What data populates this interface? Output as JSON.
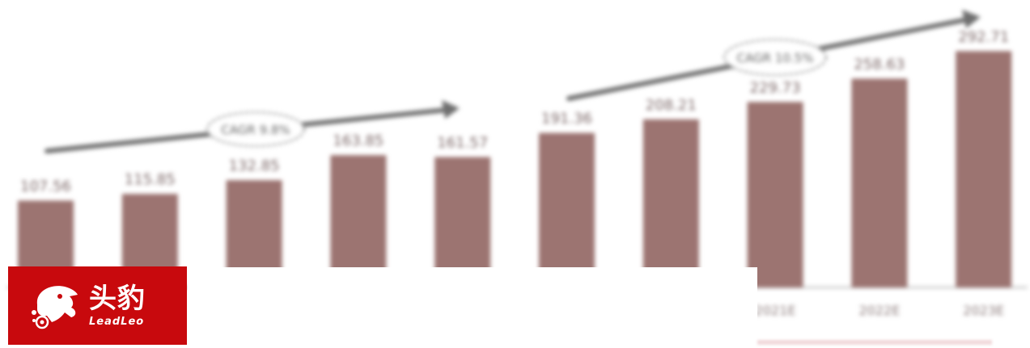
{
  "chart_data": {
    "type": "bar",
    "categories": [
      "",
      "",
      "",
      "",
      "",
      "",
      "",
      "2021E",
      "2022E",
      "2023E"
    ],
    "values": [
      107.56,
      115.85,
      132.85,
      163.85,
      161.57,
      191.36,
      208.21,
      229.73,
      258.63,
      292.71
    ],
    "value_labels": [
      "107.56",
      "115.85",
      "132.85",
      "163.85",
      "161.57",
      "191.36",
      "208.21",
      "229.73",
      "258.63",
      "292.71"
    ],
    "annotations": [
      "CAGR 9.8%",
      "CAGR 10.5%"
    ],
    "bar_color": "#9c7471",
    "ylim": [
      0,
      320
    ],
    "grid": false,
    "legend": "none"
  },
  "logo": {
    "text_cn": "头豹",
    "text_en": "LeadLeo",
    "icon": "leopard-head-icon",
    "bg_color": "#c8090d"
  }
}
